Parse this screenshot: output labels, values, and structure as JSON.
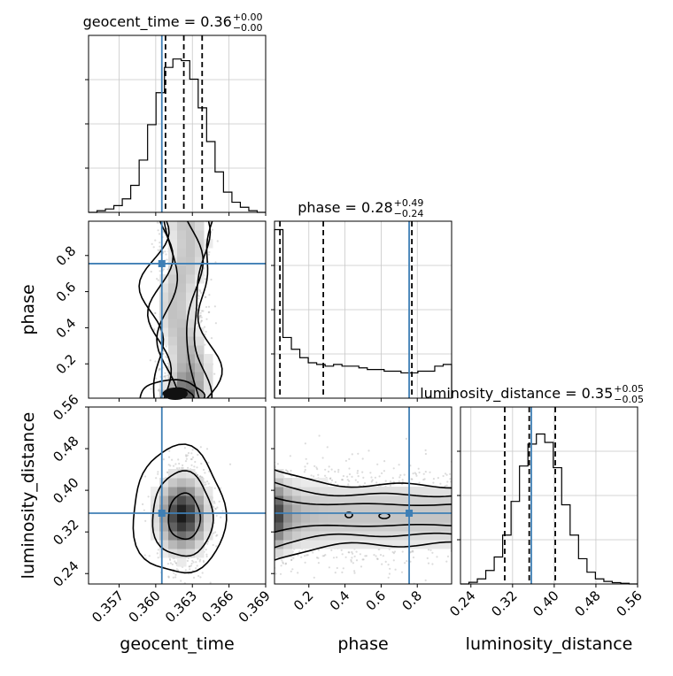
{
  "chart_data": {
    "type": "corner",
    "truth_color": "#3f7fb5",
    "grid": true,
    "parameters": [
      {
        "name": "geocent_time",
        "range": [
          0.3545,
          0.369
        ],
        "ticks": [
          0.357,
          0.36,
          0.363,
          0.366,
          0.369
        ],
        "tick_labels": [
          "0.357",
          "0.360",
          "0.363",
          "0.366",
          "0.369"
        ],
        "truth": 0.3605
      },
      {
        "name": "phase",
        "range": [
          0.01,
          0.99
        ],
        "ticks": [
          0.2,
          0.4,
          0.6,
          0.8
        ],
        "tick_labels": [
          "0.2",
          "0.4",
          "0.6",
          "0.8"
        ],
        "truth": 0.755
      },
      {
        "name": "luminosity_distance",
        "range": [
          0.22,
          0.56
        ],
        "ticks": [
          0.24,
          0.32,
          0.4,
          0.48,
          0.56
        ],
        "tick_labels": [
          "0.24",
          "0.32",
          "0.40",
          "0.48",
          "0.56"
        ],
        "truth": 0.356
      }
    ],
    "titles": [
      {
        "prefix": "geocent_time = 0.36",
        "sup": "+0.00",
        "sub": "−0.00"
      },
      {
        "prefix": "phase = 0.28",
        "sup": "+0.49",
        "sub": "−0.24"
      },
      {
        "prefix": "luminosity_distance = 0.35",
        "sup": "+0.05",
        "sub": "−0.05"
      }
    ],
    "histograms": [
      {
        "quantiles": [
          0.3608,
          0.3623,
          0.3638
        ],
        "values": [
          0,
          0.01,
          0.02,
          0.04,
          0.08,
          0.16,
          0.31,
          0.52,
          0.71,
          0.86,
          0.91,
          0.9,
          0.79,
          0.62,
          0.42,
          0.24,
          0.12,
          0.06,
          0.03,
          0.01,
          0
        ]
      },
      {
        "quantiles": [
          0.04,
          0.28,
          0.77
        ],
        "values": [
          1.0,
          0.36,
          0.29,
          0.24,
          0.21,
          0.2,
          0.19,
          0.2,
          0.19,
          0.19,
          0.18,
          0.17,
          0.17,
          0.16,
          0.16,
          0.15,
          0.15,
          0.16,
          0.16,
          0.19,
          0.2
        ]
      },
      {
        "quantiles": [
          0.305,
          0.352,
          0.402
        ],
        "values": [
          0,
          0.01,
          0.03,
          0.08,
          0.16,
          0.29,
          0.49,
          0.7,
          0.83,
          0.89,
          0.84,
          0.69,
          0.47,
          0.29,
          0.15,
          0.07,
          0.03,
          0.015,
          0.008,
          0.004,
          0
        ]
      }
    ]
  }
}
